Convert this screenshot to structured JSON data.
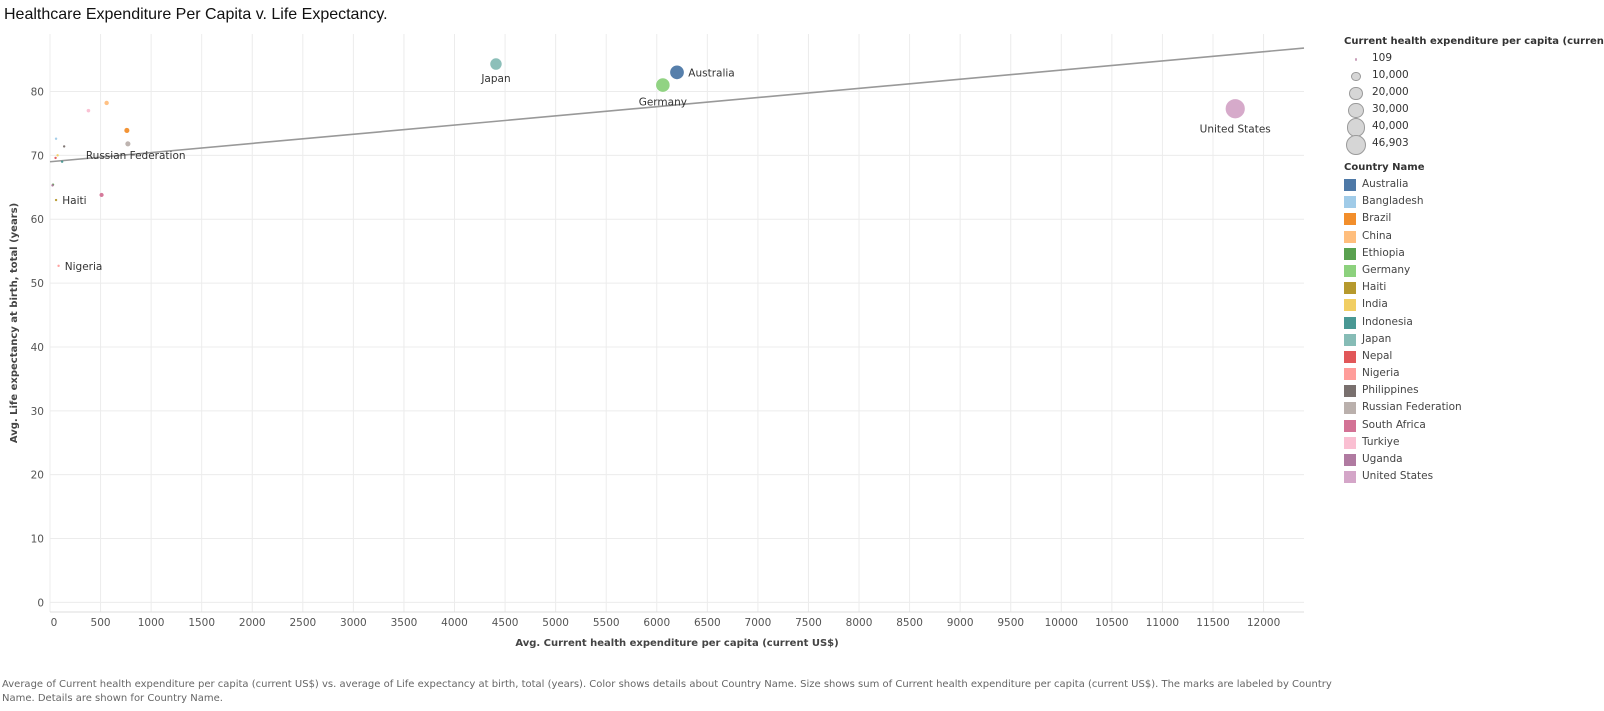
{
  "page": {
    "title": "Healthcare Expenditure Per Capita v. Life Expectancy.",
    "caption": "Average of Current health expenditure per capita (current US$) vs. average of Life expectancy at birth, total (years).  Color shows details about Country Name.  Size shows sum of Current health expenditure per capita (current US$).  The marks are labeled by Country Name.  Details are shown for Country Name."
  },
  "legend": {
    "size_title": "Current health expenditure per capita (current US$)",
    "size_items": [
      {
        "label": "109",
        "value": 109
      },
      {
        "label": "10,000",
        "value": 10000
      },
      {
        "label": "20,000",
        "value": 20000
      },
      {
        "label": "30,000",
        "value": 30000
      },
      {
        "label": "40,000",
        "value": 40000
      },
      {
        "label": "46,903",
        "value": 46903
      }
    ],
    "color_title": "Country Name",
    "color_items": [
      {
        "label": "Australia",
        "color": "#4e79a7"
      },
      {
        "label": "Bangladesh",
        "color": "#a0cbe8"
      },
      {
        "label": "Brazil",
        "color": "#f28e2b"
      },
      {
        "label": "China",
        "color": "#ffbe7d"
      },
      {
        "label": "Ethiopia",
        "color": "#59a14f"
      },
      {
        "label": "Germany",
        "color": "#8cd17d"
      },
      {
        "label": "Haiti",
        "color": "#b6992d"
      },
      {
        "label": "India",
        "color": "#f1ce63"
      },
      {
        "label": "Indonesia",
        "color": "#499894"
      },
      {
        "label": "Japan",
        "color": "#86bcb6"
      },
      {
        "label": "Nepal",
        "color": "#e15759"
      },
      {
        "label": "Nigeria",
        "color": "#ff9d9a"
      },
      {
        "label": "Philippines",
        "color": "#79706e"
      },
      {
        "label": "Russian Federation",
        "color": "#bab0ac"
      },
      {
        "label": "South Africa",
        "color": "#d37295"
      },
      {
        "label": "Turkiye",
        "color": "#fabfd2"
      },
      {
        "label": "Uganda",
        "color": "#b07aa1"
      },
      {
        "label": "United States",
        "color": "#d4a6c8"
      }
    ]
  },
  "chart_data": {
    "type": "scatter",
    "title": "Healthcare Expenditure Per Capita v. Life Expectancy.",
    "xlabel": "Avg. Current health expenditure per capita (current US$)",
    "ylabel": "Avg. Life expectancy at birth, total (years)",
    "xlim": [
      0,
      12400
    ],
    "ylim": [
      -1.5,
      89
    ],
    "xticks": [
      0,
      500,
      1000,
      1500,
      2000,
      2500,
      3000,
      3500,
      4000,
      4500,
      5000,
      5500,
      6000,
      6500,
      7000,
      7500,
      8000,
      8500,
      9000,
      9500,
      10000,
      10500,
      11000,
      11500,
      12000
    ],
    "yticks": [
      0,
      10,
      20,
      30,
      40,
      50,
      60,
      70,
      80
    ],
    "grid": true,
    "legend_position": "right",
    "trend_line": {
      "x": [
        0,
        12400
      ],
      "y": [
        69.0,
        86.8
      ],
      "color": "#999999"
    },
    "points": [
      {
        "name": "United States",
        "label": "United States",
        "x": 11720,
        "y": 77.3,
        "size": 46903,
        "color": "#d4a6c8"
      },
      {
        "name": "Australia",
        "label": "Australia",
        "x": 6200,
        "y": 83.0,
        "size": 24800,
        "color": "#4e79a7"
      },
      {
        "name": "Germany",
        "label": "Germany",
        "x": 6060,
        "y": 81.0,
        "size": 24240,
        "color": "#8cd17d"
      },
      {
        "name": "Japan",
        "label": "Japan",
        "x": 4410,
        "y": 84.3,
        "size": 17640,
        "color": "#86bcb6"
      },
      {
        "name": "Russian Federation",
        "label": "Russian Federation",
        "x": 770,
        "y": 71.8,
        "size": 3080,
        "color": "#bab0ac"
      },
      {
        "name": "Brazil",
        "label": "",
        "x": 760,
        "y": 73.9,
        "size": 3040,
        "color": "#f28e2b"
      },
      {
        "name": "China",
        "label": "",
        "x": 560,
        "y": 78.2,
        "size": 2240,
        "color": "#ffbe7d"
      },
      {
        "name": "Turkiye",
        "label": "",
        "x": 380,
        "y": 77.0,
        "size": 1520,
        "color": "#fabfd2"
      },
      {
        "name": "South Africa",
        "label": "",
        "x": 510,
        "y": 63.8,
        "size": 2040,
        "color": "#d37295"
      },
      {
        "name": "Philippines",
        "label": "",
        "x": 140,
        "y": 71.4,
        "size": 560,
        "color": "#79706e"
      },
      {
        "name": "Indonesia",
        "label": "",
        "x": 120,
        "y": 69.0,
        "size": 480,
        "color": "#499894"
      },
      {
        "name": "Bangladesh",
        "label": "",
        "x": 60,
        "y": 72.6,
        "size": 240,
        "color": "#a0cbe8"
      },
      {
        "name": "India",
        "label": "",
        "x": 75,
        "y": 70.0,
        "size": 300,
        "color": "#f1ce63"
      },
      {
        "name": "Nepal",
        "label": "",
        "x": 55,
        "y": 69.6,
        "size": 220,
        "color": "#e15759"
      },
      {
        "name": "Ethiopia",
        "label": "",
        "x": 30,
        "y": 65.4,
        "size": 120,
        "color": "#59a14f"
      },
      {
        "name": "Uganda",
        "label": "",
        "x": 25,
        "y": 65.3,
        "size": 109,
        "color": "#b07aa1"
      },
      {
        "name": "Haiti",
        "label": "Haiti",
        "x": 60,
        "y": 63.0,
        "size": 240,
        "color": "#b6992d"
      },
      {
        "name": "Nigeria",
        "label": "Nigeria",
        "x": 85,
        "y": 52.7,
        "size": 340,
        "color": "#ff9d9a"
      }
    ]
  }
}
